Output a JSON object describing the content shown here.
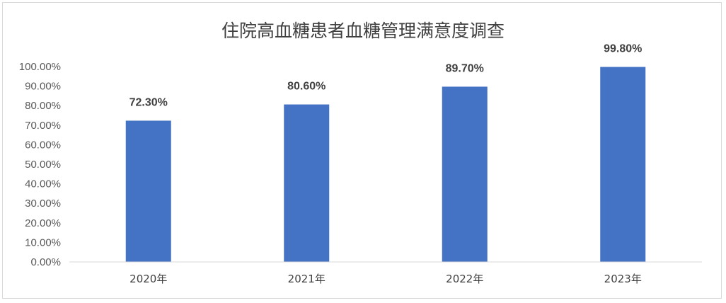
{
  "chart_data": {
    "type": "bar",
    "title": "住院高血糖患者血糖管理满意度调查",
    "xlabel": "",
    "ylabel": "",
    "categories": [
      "2020年",
      "2021年",
      "2022年",
      "2023年"
    ],
    "values": [
      72.3,
      80.6,
      89.7,
      99.8
    ],
    "data_labels": [
      "72.30%",
      "80.60%",
      "89.70%",
      "99.80%"
    ],
    "y_ticks": [
      "0.00%",
      "10.00%",
      "20.00%",
      "30.00%",
      "40.00%",
      "50.00%",
      "60.00%",
      "70.00%",
      "80.00%",
      "90.00%",
      "100.00%"
    ],
    "ylim": [
      0,
      100
    ],
    "grid": false,
    "legend": "none",
    "bar_color": "#4472c4"
  }
}
